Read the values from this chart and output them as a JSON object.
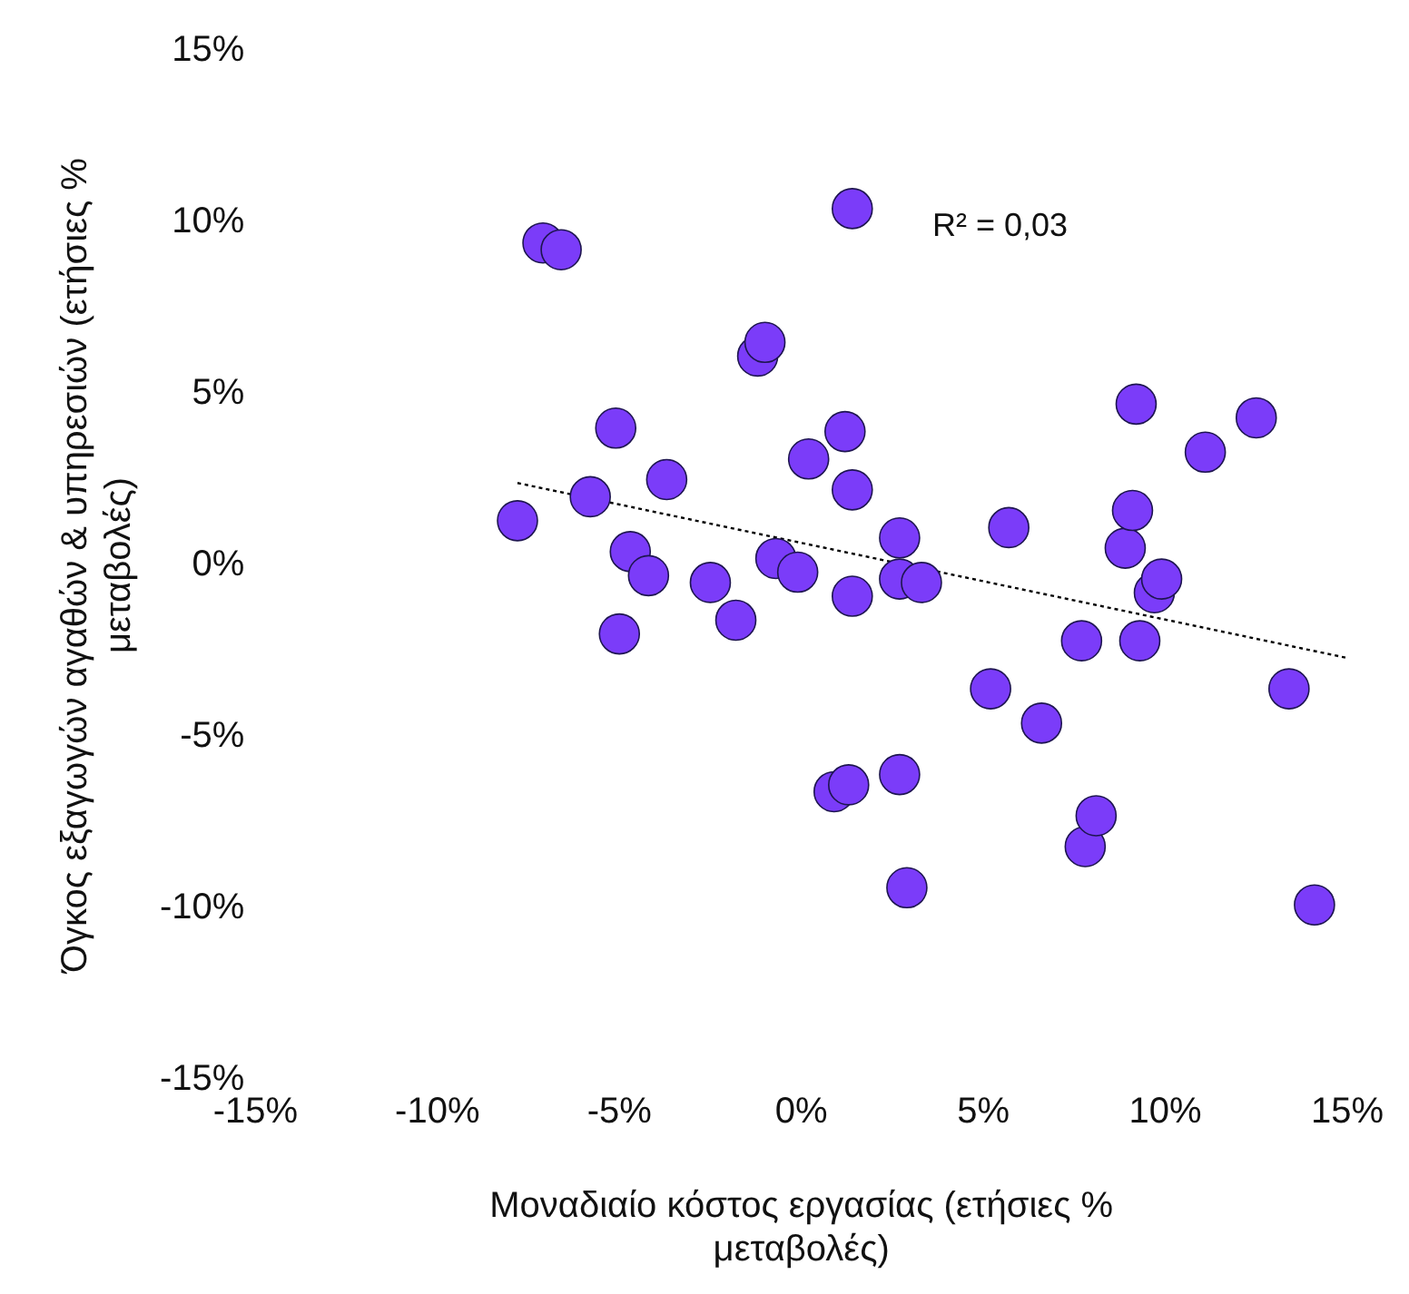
{
  "chart_data": {
    "type": "scatter",
    "xlabel": "Μοναδιαίο κόστος εργασίας (ετήσιες % μεταβολές)",
    "ylabel": "Όγκος εξαγωγών αγαθών & υπηρεσιών (ετήσιες % μεταβολές)",
    "annotations": [
      "R² = 0,03"
    ],
    "xlim": [
      -15,
      15
    ],
    "ylim": [
      -15,
      15
    ],
    "xticks": [
      {
        "value": -15,
        "label": "-15%"
      },
      {
        "value": -10,
        "label": "-10%"
      },
      {
        "value": -5,
        "label": "-5%"
      },
      {
        "value": 0,
        "label": "0%"
      },
      {
        "value": 5,
        "label": "5%"
      },
      {
        "value": 10,
        "label": "10%"
      },
      {
        "value": 15,
        "label": "15%"
      }
    ],
    "yticks": [
      {
        "value": -15,
        "label": "-15%"
      },
      {
        "value": -10,
        "label": "-10%"
      },
      {
        "value": -5,
        "label": "-5%"
      },
      {
        "value": 0,
        "label": "0%"
      },
      {
        "value": 5,
        "label": "5%"
      },
      {
        "value": 10,
        "label": "10%"
      },
      {
        "value": 15,
        "label": "15%"
      }
    ],
    "grid": false,
    "legend": false,
    "marker": "circle",
    "series": [
      {
        "color": "#7b3cf9",
        "x": [
          -7.8,
          -7.1,
          -6.6,
          -5.8,
          -5.1,
          -5.0,
          -4.7,
          -4.2,
          -3.7,
          -2.5,
          -1.8,
          -1.2,
          -1.0,
          -0.7,
          -0.1,
          0.2,
          0.9,
          1.2,
          1.3,
          1.4,
          1.4,
          1.4,
          2.7,
          2.7,
          2.7,
          3.3,
          2.9,
          5.2,
          5.7,
          6.6,
          7.7,
          7.8,
          8.1,
          8.9,
          9.1,
          9.2,
          9.3,
          9.7,
          9.9,
          11.1,
          12.5,
          13.4,
          14.1
        ],
        "values": [
          1.3,
          9.4,
          9.2,
          2.0,
          4.0,
          -2.0,
          0.4,
          -0.3,
          2.5,
          -0.5,
          -1.6,
          6.1,
          6.5,
          0.2,
          -0.2,
          3.1,
          -6.6,
          3.9,
          -6.4,
          10.4,
          2.2,
          -0.9,
          -6.1,
          0.8,
          -0.4,
          -0.5,
          -9.4,
          -3.6,
          1.1,
          -4.6,
          -2.2,
          -8.2,
          -7.3,
          0.5,
          1.6,
          4.7,
          -2.2,
          -0.8,
          -0.4,
          3.3,
          4.3,
          -3.6,
          -9.9
        ]
      },
      {
        "type": "line",
        "color": "#000000",
        "line_style": "dotted",
        "marker": "none",
        "x": [
          -7.8,
          15
        ],
        "values": [
          2.4,
          -2.7
        ]
      }
    ]
  }
}
